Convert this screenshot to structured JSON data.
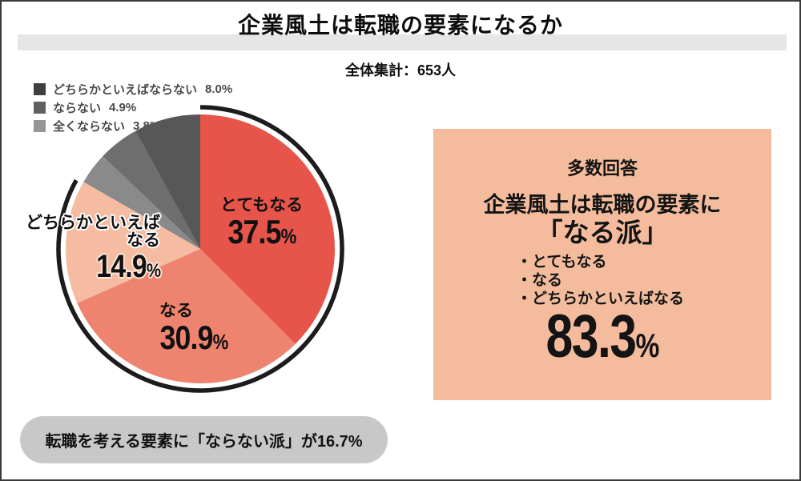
{
  "header": {
    "title": "企業風土は転職の要素になるか",
    "total_label": "全体集計：653人"
  },
  "chart_data": {
    "type": "pie",
    "title": "企業風土は転職の要素になるか",
    "total_respondents": "653人",
    "start_angle_deg": 0,
    "clockwise": true,
    "slices": [
      {
        "label": "とてもなる",
        "value": 37.5,
        "color": "#e7544a"
      },
      {
        "label": "なる",
        "value": 30.9,
        "color": "#ee8470"
      },
      {
        "label": "どちらかといえばなる",
        "value": 14.9,
        "color": "#f5bca2"
      },
      {
        "label": "全くならない",
        "value": 3.8,
        "color": "#8a8a8a"
      },
      {
        "label": "ならない",
        "value": 4.9,
        "color": "#6e6e6e"
      },
      {
        "label": "どちらかといえばならない",
        "value": 8.0,
        "color": "#575757"
      }
    ],
    "emphasis_arc": {
      "from_deg": 0,
      "to_deg": 299,
      "color": "#1c1c1c",
      "note": "black arc highlighting なる派 83.3%"
    }
  },
  "legend": {
    "items": [
      {
        "label": "どちらかといえばならない",
        "value": "8.0%",
        "color": "#3f3f3f"
      },
      {
        "label": "ならない",
        "value": "4.9%",
        "color": "#606060"
      },
      {
        "label": "全くならない",
        "value": "3.8%",
        "color": "#969696"
      }
    ]
  },
  "pie_labels": {
    "totemo": {
      "label": "とてもなる",
      "value": "37.5",
      "unit": "%"
    },
    "naru": {
      "label": "なる",
      "value": "30.9",
      "unit": "%"
    },
    "dochira": {
      "line1": "どちらかといえば",
      "line2": "なる",
      "value": "14.9",
      "unit": "%"
    }
  },
  "panel": {
    "bg_color": "#f4bc9d",
    "heading": "多数回答",
    "line1": "企業風土は転職の要素に",
    "line2": "「なる派」",
    "bullets": [
      "・とてもなる",
      "・なる",
      "・どちらかといえばなる"
    ],
    "value": "83.3",
    "unit": "%"
  },
  "footer": {
    "note": "転職を考える要素に「ならない派」が16.7%"
  }
}
